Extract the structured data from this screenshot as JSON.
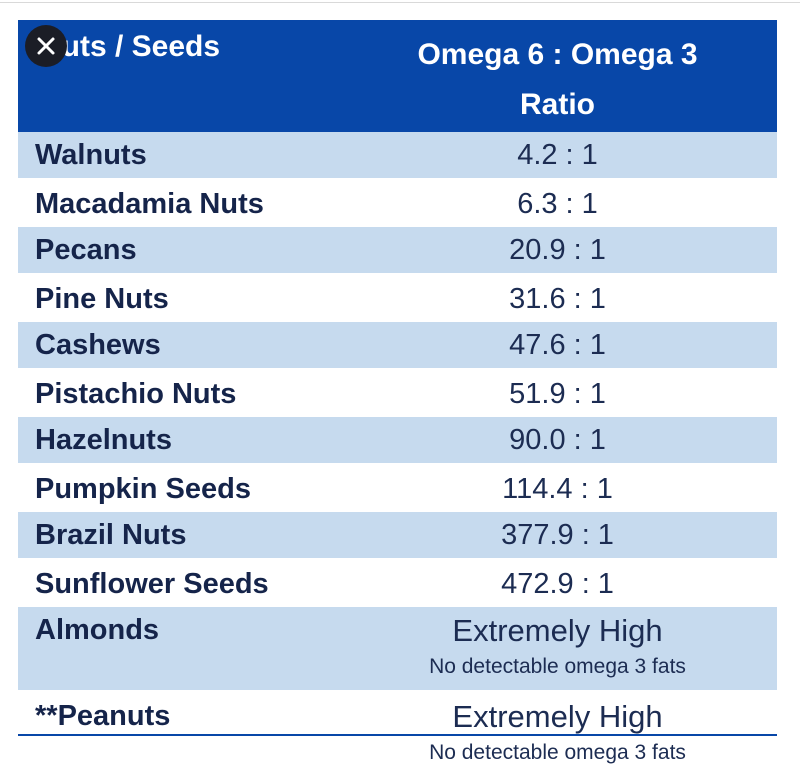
{
  "table": {
    "headers": {
      "col1": "Nuts / Seeds",
      "col2_line1": "Omega 6 : Omega 3",
      "col2_line2": "Ratio"
    },
    "rows": [
      {
        "name": "Walnuts",
        "ratio": "4.2 : 1"
      },
      {
        "name": "Macadamia Nuts",
        "ratio": "6.3 : 1"
      },
      {
        "name": "Pecans",
        "ratio": "20.9 : 1"
      },
      {
        "name": "Pine Nuts",
        "ratio": "31.6 : 1"
      },
      {
        "name": "Cashews",
        "ratio": "47.6 : 1"
      },
      {
        "name": "Pistachio Nuts",
        "ratio": "51.9 : 1"
      },
      {
        "name": "Hazelnuts",
        "ratio": "90.0 : 1"
      },
      {
        "name": "Pumpkin Seeds",
        "ratio": "114.4 : 1"
      },
      {
        "name": "Brazil Nuts",
        "ratio": "377.9 : 1"
      },
      {
        "name": "Sunflower Seeds",
        "ratio": "472.9 : 1"
      },
      {
        "name": "Almonds",
        "ratio": "Extremely High",
        "note": "No detectable omega 3 fats"
      },
      {
        "name": "**Peanuts",
        "ratio": "Extremely High",
        "note": "No detectable omega 3 fats"
      }
    ]
  },
  "close_button": {
    "icon": "close-icon"
  },
  "colors": {
    "header_bg": "#0847a8",
    "shaded_row": "#c6daee",
    "text": "#15244a"
  }
}
